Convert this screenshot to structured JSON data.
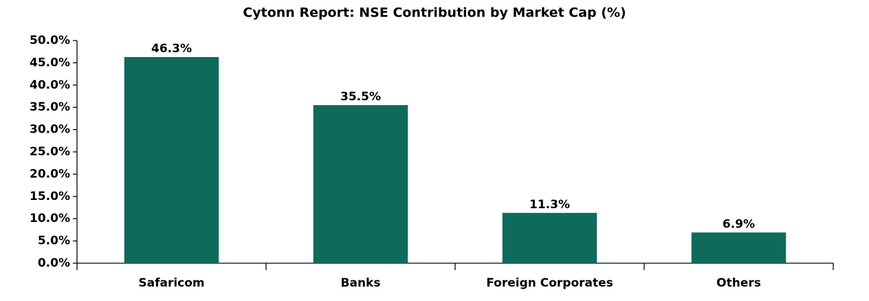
{
  "chart_data": {
    "type": "bar",
    "title": "Cytonn Report: NSE Contribution by Market Cap (%)",
    "categories": [
      "Safaricom",
      "Banks",
      "Foreign Corporates",
      "Others"
    ],
    "values": [
      46.3,
      35.5,
      11.3,
      6.9
    ],
    "value_labels": [
      "46.3%",
      "35.5%",
      "11.3%",
      "6.9%"
    ],
    "color": "#0e6b5c",
    "ylim": [
      0,
      50
    ],
    "yticks": [
      {
        "value": 0,
        "label": "0.0%"
      },
      {
        "value": 5,
        "label": "5.0%"
      },
      {
        "value": 10,
        "label": "10.0%"
      },
      {
        "value": 15,
        "label": "15.0%"
      },
      {
        "value": 20,
        "label": "20.0%"
      },
      {
        "value": 25,
        "label": "25.0%"
      },
      {
        "value": 30,
        "label": "30.0%"
      },
      {
        "value": 35,
        "label": "35.0%"
      },
      {
        "value": 40,
        "label": "40.0%"
      },
      {
        "value": 45,
        "label": "45.0%"
      },
      {
        "value": 50,
        "label": "50.0%"
      }
    ],
    "grid": false
  }
}
